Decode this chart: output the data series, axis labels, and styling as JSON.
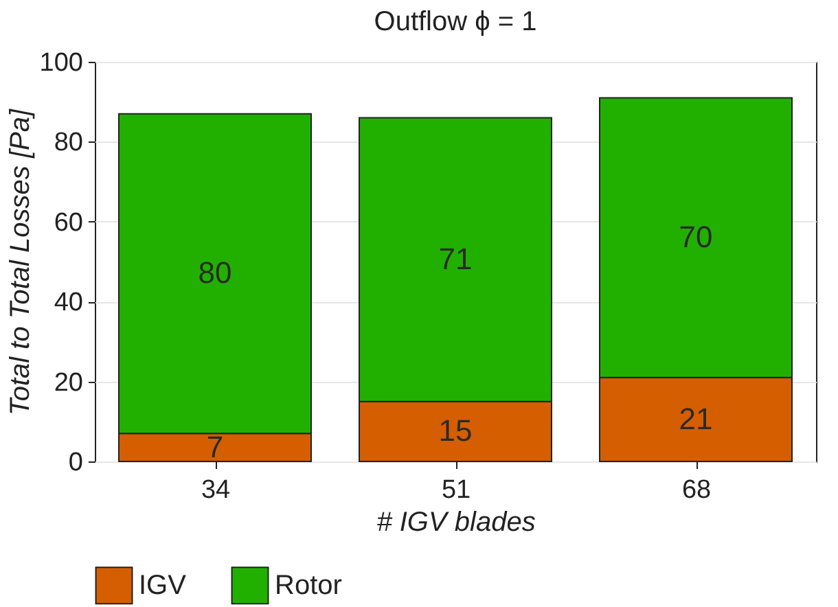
{
  "chart_data": {
    "type": "bar",
    "title": "Outflow ϕ = 1",
    "xlabel": "# IGV blades",
    "ylabel": "Total to Total Losses [Pa]",
    "categories": [
      "34",
      "51",
      "68"
    ],
    "series": [
      {
        "name": "IGV",
        "color": "#d55e00",
        "values": [
          7,
          15,
          21
        ]
      },
      {
        "name": "Rotor",
        "color": "#22b000",
        "values": [
          80,
          71,
          70
        ]
      }
    ],
    "stacked": true,
    "data_labels": true,
    "ylim": [
      0,
      100
    ],
    "yticks": [
      0,
      20,
      40,
      60,
      80,
      100
    ],
    "grid": "y",
    "legend": "bottom"
  }
}
